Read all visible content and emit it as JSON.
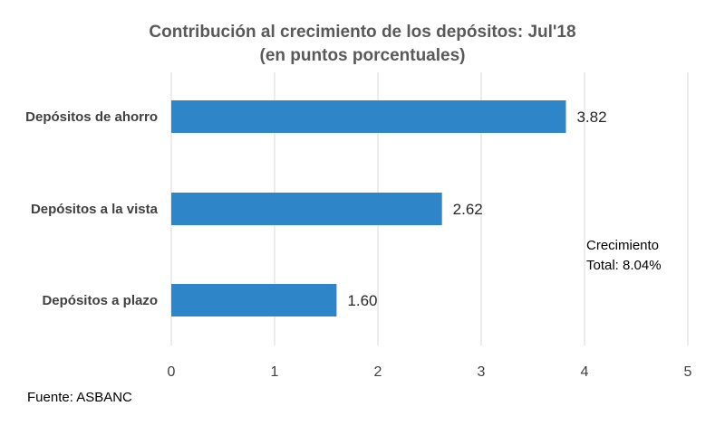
{
  "chart_data": {
    "type": "bar",
    "orientation": "horizontal",
    "title": "Contribución al crecimiento de los depósitos: Jul'18",
    "subtitle": "(en puntos porcentuales)",
    "categories": [
      "Depósitos de ahorro",
      "Depósitos a la vista",
      "Depósitos a plazo"
    ],
    "values": [
      3.82,
      2.62,
      1.6
    ],
    "value_labels": [
      "3.82",
      "2.62",
      "1.60"
    ],
    "xlim": [
      0,
      5
    ],
    "x_ticks": [
      "0",
      "1",
      "2",
      "3",
      "4",
      "5"
    ],
    "grid": true,
    "bar_color": "#2e86c8",
    "annotation": [
      "Crecimiento",
      "Total: 8.04%"
    ]
  },
  "source": "Fuente: ASBANC"
}
